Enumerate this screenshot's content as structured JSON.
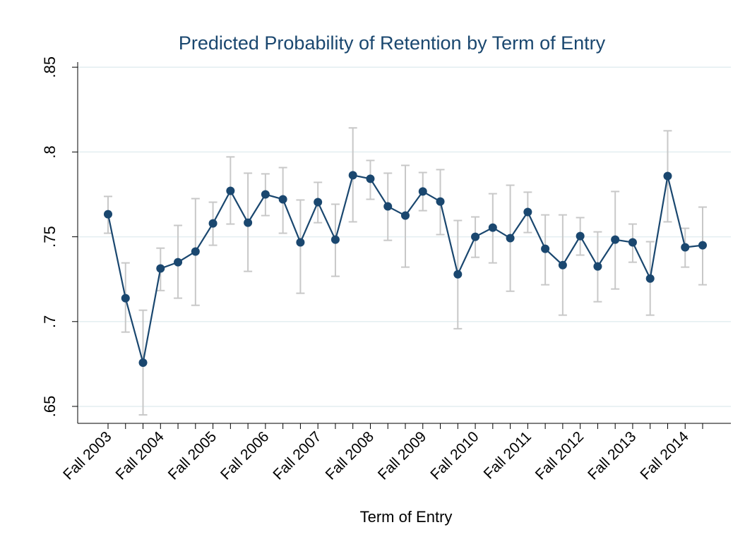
{
  "chart_data": {
    "type": "line",
    "title": "Predicted Probability of Retention by Term of Entry",
    "xlabel": "Term of Entry",
    "categories": [
      "Fall 2003",
      null,
      null,
      "Fall 2004",
      null,
      null,
      "Fall 2005",
      null,
      null,
      "Fall 2006",
      null,
      null,
      "Fall 2007",
      null,
      null,
      "Fall 2008",
      null,
      null,
      "Fall 2009",
      null,
      null,
      "Fall 2010",
      null,
      null,
      "Fall 2011",
      null,
      null,
      "Fall 2012",
      null,
      null,
      "Fall 2013",
      null,
      null,
      "Fall 2014",
      null
    ],
    "series": [
      {
        "color": "#1a476f",
        "values": [
          0.7633,
          0.7138,
          0.6758,
          0.7313,
          0.735,
          0.7413,
          0.7579,
          0.7771,
          0.7583,
          0.775,
          0.7721,
          0.7467,
          0.7704,
          0.7483,
          0.7863,
          0.7842,
          0.7679,
          0.7625,
          0.7767,
          0.7708,
          0.7279,
          0.75,
          0.7554,
          0.7492,
          0.7646,
          0.7429,
          0.7333,
          0.7504,
          0.7325,
          0.7483,
          0.7467,
          0.7254,
          0.7858,
          0.7438,
          0.745
        ],
        "ci_upper": [
          0.7738,
          0.7346,
          0.7067,
          0.7433,
          0.7567,
          0.7725,
          0.7704,
          0.7971,
          0.7875,
          0.7871,
          0.7908,
          0.7717,
          0.7821,
          0.7692,
          0.8142,
          0.795,
          0.7875,
          0.7921,
          0.7879,
          0.7896,
          0.7596,
          0.7617,
          0.7754,
          0.7804,
          0.7763,
          0.7629,
          0.7629,
          0.7613,
          0.7529,
          0.7767,
          0.7575,
          0.7471,
          0.8125,
          0.755,
          0.7675
        ],
        "ci_lower": [
          0.7521,
          0.6938,
          0.645,
          0.7183,
          0.7138,
          0.7096,
          0.745,
          0.7575,
          0.7296,
          0.7625,
          0.7521,
          0.7167,
          0.7583,
          0.7267,
          0.7588,
          0.7721,
          0.7479,
          0.7321,
          0.7654,
          0.7513,
          0.6958,
          0.7379,
          0.7346,
          0.7179,
          0.7525,
          0.7217,
          0.7038,
          0.7392,
          0.7117,
          0.7192,
          0.735,
          0.7038,
          0.7588,
          0.7321,
          0.7217
        ],
        "ci_color": "#c8c8c8"
      }
    ],
    "ylim": [
      0.64,
      0.853
    ],
    "yticks": [
      {
        "value": 0.65,
        "label": ".65"
      },
      {
        "value": 0.7,
        "label": ".7"
      },
      {
        "value": 0.75,
        "label": ".75"
      },
      {
        "value": 0.8,
        "label": ".8"
      },
      {
        "value": 0.85,
        "label": ".85"
      }
    ],
    "grid": true,
    "grid_color": "#e3eef0"
  }
}
